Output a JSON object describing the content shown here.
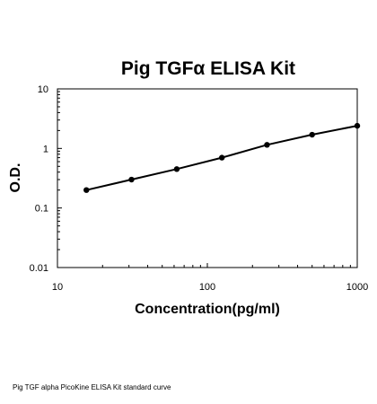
{
  "caption": "Pig TGF alpha PicoKine ELISA Kit standard curve",
  "chart_data": {
    "type": "scatter",
    "title": "Pig TGFα ELISA Kit",
    "xlabel": "Concentration(pg/ml)",
    "ylabel": "O.D.",
    "x_scale": "log",
    "y_scale": "log",
    "xlim": [
      10,
      1000
    ],
    "ylim": [
      0.01,
      10
    ],
    "x_ticks": [
      "10",
      "100",
      "1000"
    ],
    "y_ticks": [
      "0.01",
      "0.1",
      "1",
      "10"
    ],
    "grid": false,
    "legend": "none",
    "series": [
      {
        "x": [
          15.6,
          31.2,
          62.5,
          125,
          250,
          500,
          1000
        ],
        "y": [
          0.2,
          0.3,
          0.45,
          0.7,
          1.15,
          1.7,
          2.4
        ],
        "marker_color": "#000000",
        "line_color": "#000000",
        "fit_line": true
      }
    ]
  }
}
